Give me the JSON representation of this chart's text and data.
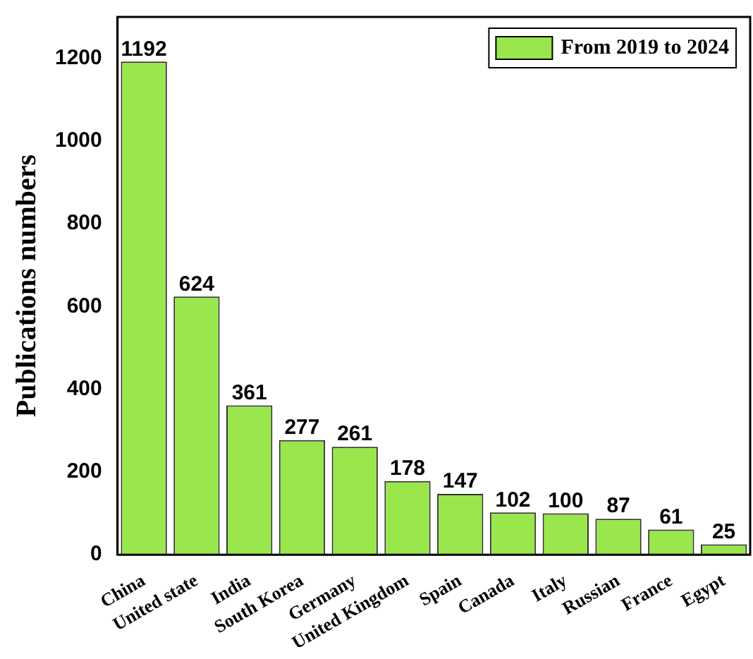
{
  "chart_data": {
    "type": "bar",
    "ylabel": "Publications numbers",
    "categories": [
      "China",
      "United state",
      "India",
      "South Korea",
      "Germany",
      "United Kingdom",
      "Spain",
      "Canada",
      "Italy",
      "Russian",
      "France",
      "Egypt"
    ],
    "series": [
      {
        "name": "From 2019 to 2024",
        "color": "#99e64d",
        "values": [
          1192,
          624,
          361,
          277,
          261,
          178,
          147,
          102,
          100,
          87,
          61,
          25
        ]
      }
    ],
    "ylim": [
      0,
      1300
    ],
    "yticks": [
      0,
      200,
      400,
      600,
      800,
      1000,
      1200
    ],
    "grid": false,
    "legend": "top right",
    "data_labels": true
  }
}
